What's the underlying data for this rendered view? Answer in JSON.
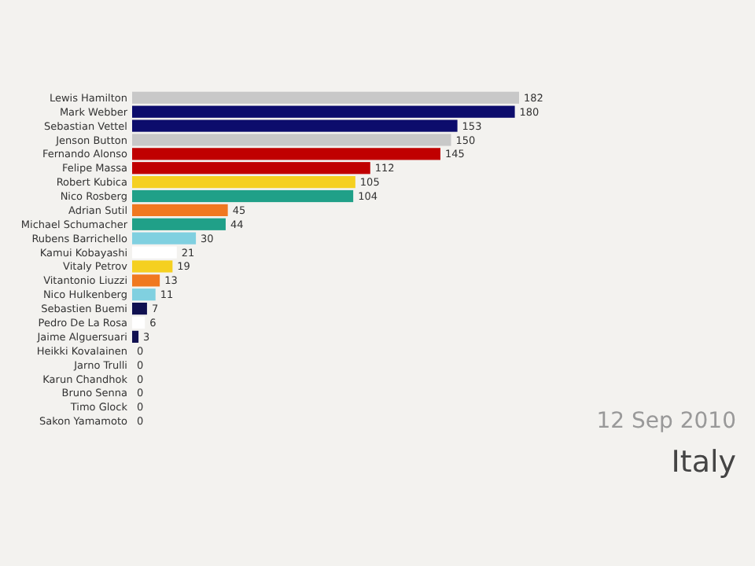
{
  "chart_data": {
    "type": "bar",
    "orientation": "horizontal",
    "data_labels": true,
    "categories": [
      "Lewis Hamilton",
      "Mark Webber",
      "Sebastian Vettel",
      "Jenson Button",
      "Fernando Alonso",
      "Felipe Massa",
      "Robert Kubica",
      "Nico Rosberg",
      "Adrian Sutil",
      "Michael Schumacher",
      "Rubens Barrichello",
      "Kamui Kobayashi",
      "Vitaly Petrov",
      "Vitantonio Liuzzi",
      "Nico Hulkenberg",
      "Sebastien Buemi",
      "Pedro De La Rosa",
      "Jaime Alguersuari",
      "Heikki Kovalainen",
      "Jarno Trulli",
      "Karun Chandhok",
      "Bruno Senna",
      "Timo Glock",
      "Sakon Yamamoto"
    ],
    "values": [
      182,
      180,
      153,
      150,
      145,
      112,
      105,
      104,
      45,
      44,
      30,
      21,
      19,
      13,
      11,
      7,
      6,
      3,
      0,
      0,
      0,
      0,
      0,
      0
    ],
    "colors": [
      "#c8c8c8",
      "#0c0c6c",
      "#0c0c6c",
      "#c8c8c8",
      "#c00000",
      "#c00000",
      "#f5d020",
      "#20a088",
      "#f07820",
      "#20a088",
      "#80d0e0",
      "#ffffff",
      "#f5d020",
      "#f07820",
      "#80d0e0",
      "#101050",
      "#ffffff",
      "#101050",
      "#1a5e2a",
      "#1a5e2a",
      "#404040",
      "#404040",
      "#b01010",
      "#b01010"
    ],
    "annotations": [
      "12 Sep 2010",
      "Italy"
    ]
  }
}
